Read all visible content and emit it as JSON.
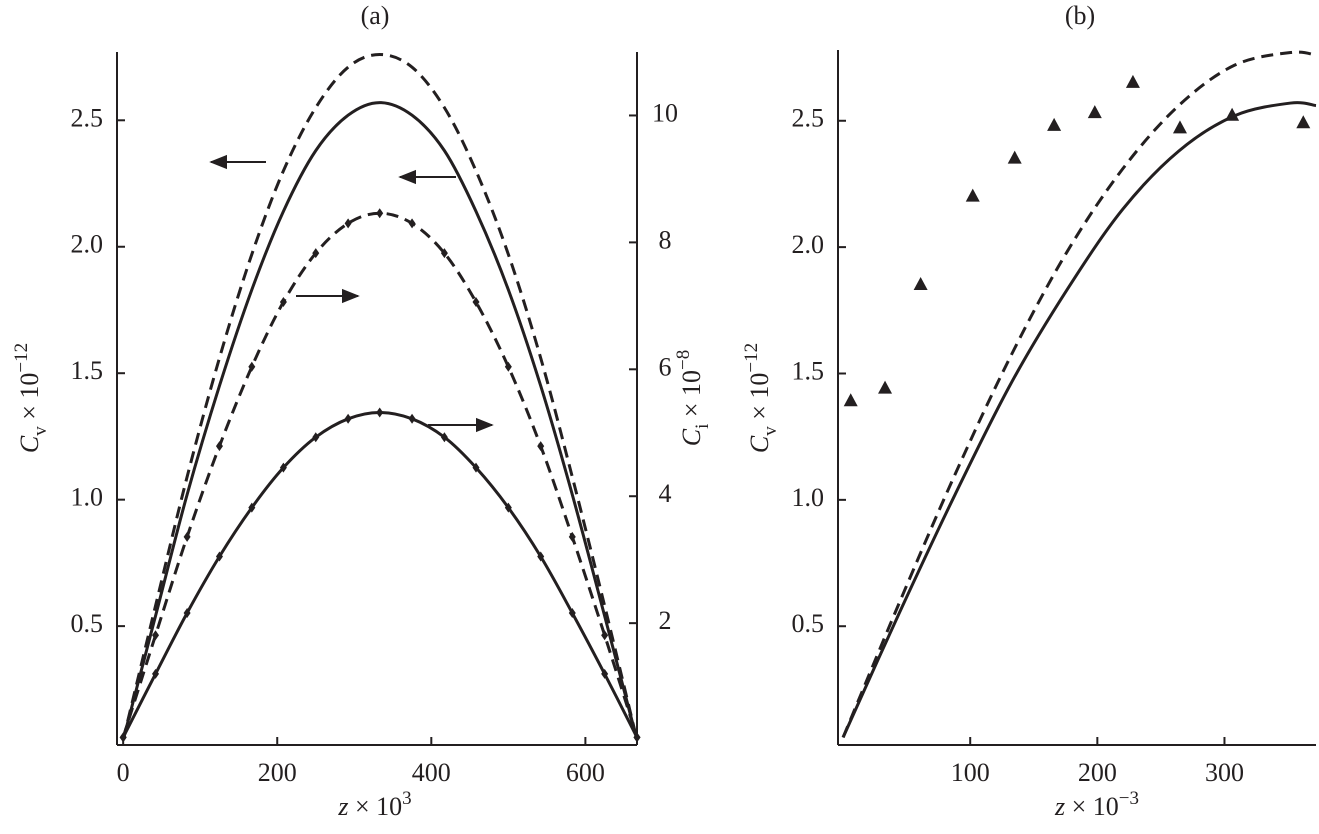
{
  "chart_data": [
    {
      "type": "line",
      "title": "(a)",
      "x_label": {
        "base": "z",
        "mid": " × 10",
        "sup": "3"
      },
      "y_label": {
        "base": "C",
        "sub": "v",
        "mid": " × 10",
        "sup": "−12"
      },
      "y2_label": {
        "base": "C",
        "sub": "i",
        "mid": " × 10",
        "sup": "−8"
      },
      "xlim": [
        -8,
        667
      ],
      "xticks": [
        0,
        200,
        400,
        600
      ],
      "ylim": [
        0.03,
        2.77
      ],
      "yticks": [
        0.5,
        {
          "value": 1,
          "label": "1.0"
        },
        1.5,
        {
          "value": 2,
          "label": "2.0"
        },
        2.5
      ],
      "y2lim": [
        0.08,
        11.0
      ],
      "y2ticks": [
        2,
        4,
        6,
        8,
        10
      ],
      "series": [
        {
          "color": "#231f20",
          "dash": true,
          "marker": "none",
          "x": [
            0,
            42,
            83,
            125,
            167,
            208,
            250,
            292,
            333,
            375,
            417,
            458,
            500,
            542,
            583,
            625,
            667
          ],
          "values": [
            0.05,
            0.58,
            1.09,
            1.56,
            1.97,
            2.3,
            2.55,
            2.71,
            2.76,
            2.71,
            2.55,
            2.3,
            1.97,
            1.56,
            1.09,
            0.58,
            0.05
          ]
        },
        {
          "color": "#231f20",
          "dash": false,
          "marker": "none",
          "x": [
            0,
            42,
            83,
            125,
            167,
            208,
            250,
            292,
            333,
            375,
            417,
            458,
            500,
            542,
            583,
            625,
            667
          ],
          "values": [
            0.05,
            0.54,
            1.02,
            1.45,
            1.83,
            2.14,
            2.38,
            2.52,
            2.57,
            2.52,
            2.38,
            2.14,
            1.83,
            1.45,
            1.02,
            0.54,
            0.05
          ]
        },
        {
          "color": "#231f20",
          "dash": true,
          "marker": "diamond",
          "axis": "y2",
          "x": [
            0,
            42,
            83,
            125,
            167,
            208,
            250,
            292,
            333,
            375,
            417,
            458,
            500,
            542,
            583,
            625,
            667
          ],
          "values": [
            0.2,
            1.81,
            3.36,
            4.79,
            6.04,
            7.06,
            7.83,
            8.3,
            8.46,
            8.3,
            7.83,
            7.06,
            6.04,
            4.79,
            3.36,
            1.81,
            0.2
          ]
        },
        {
          "color": "#231f20",
          "dash": false,
          "marker": "diamond",
          "axis": "y2",
          "x": [
            0,
            42,
            83,
            125,
            167,
            208,
            250,
            292,
            333,
            375,
            417,
            458,
            500,
            542,
            583,
            625,
            667
          ],
          "values": [
            0.2,
            1.2,
            2.16,
            3.05,
            3.82,
            4.45,
            4.93,
            5.22,
            5.32,
            5.22,
            4.93,
            4.45,
            3.82,
            3.05,
            2.16,
            1.2,
            0.2
          ]
        }
      ]
    },
    {
      "type": "line",
      "title": "(b)",
      "x_label": {
        "base": "z",
        "mid": " × 10",
        "sup": "−3"
      },
      "y_label": {
        "base": "C",
        "sub": "v",
        "mid": " × 10",
        "sup": "−12"
      },
      "xlim": [
        -4,
        372
      ],
      "xticks": [
        100,
        200,
        300
      ],
      "ylim": [
        0.03,
        2.78
      ],
      "yticks": [
        0.5,
        {
          "value": 1,
          "label": "1.0"
        },
        1.5,
        {
          "value": 2,
          "label": "2.0"
        },
        2.5
      ],
      "series": [
        {
          "color": "#231f20",
          "dash": true,
          "marker": "none",
          "x": [
            0,
            44,
            88,
            132,
            176,
            220,
            264,
            308,
            352,
            372
          ],
          "values": [
            0.06,
            0.59,
            1.1,
            1.57,
            1.98,
            2.31,
            2.56,
            2.72,
            2.77,
            2.76
          ]
        },
        {
          "color": "#231f20",
          "dash": false,
          "marker": "none",
          "x": [
            0,
            44,
            88,
            132,
            176,
            220,
            264,
            308,
            352,
            372
          ],
          "values": [
            0.06,
            0.55,
            1.02,
            1.46,
            1.83,
            2.15,
            2.38,
            2.52,
            2.57,
            2.56
          ]
        },
        {
          "color": "#231f20",
          "dash": false,
          "marker": "triangle",
          "noline": true,
          "x": [
            6,
            33,
            61,
            102,
            135,
            166,
            198,
            228,
            265,
            306,
            362
          ],
          "values": [
            1.39,
            1.44,
            1.85,
            2.2,
            2.35,
            2.48,
            2.53,
            2.65,
            2.47,
            2.52,
            2.49
          ]
        }
      ]
    }
  ]
}
